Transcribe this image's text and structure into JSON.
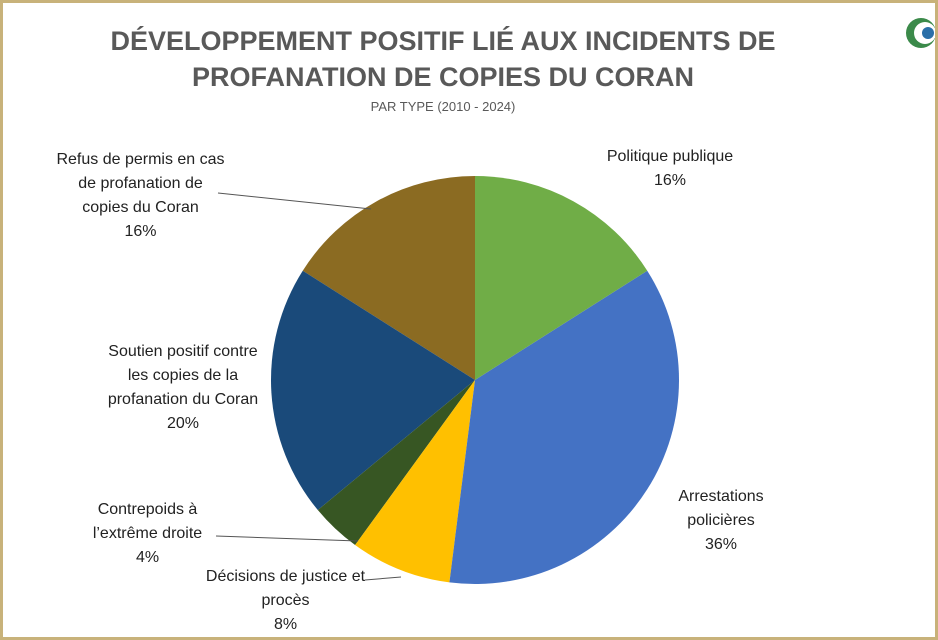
{
  "chart_data": {
    "type": "pie",
    "title": "DÉVELOPPEMENT POSITIF LIÉ AUX INCIDENTS DE PROFANATION DE COPIES DU CORAN",
    "subtitle": "PAR TYPE (2010 - 2024)",
    "categories": [
      "Politique publique",
      "Arrestations policières",
      "Décisions de justice et procès",
      "Contrepoids à l’extrême droite",
      "Soutien positif contre les copies de la profanation du Coran",
      "Refus de permis en cas de profanation de copies du Coran"
    ],
    "values": [
      16,
      36,
      8,
      4,
      20,
      16
    ],
    "value_labels": [
      "16%",
      "36%",
      "8%",
      "4%",
      "20%",
      "16%"
    ],
    "colors": [
      "#70ad47",
      "#4472c4",
      "#ffc000",
      "#375623",
      "#1a4a7a",
      "#8b6b22"
    ]
  }
}
